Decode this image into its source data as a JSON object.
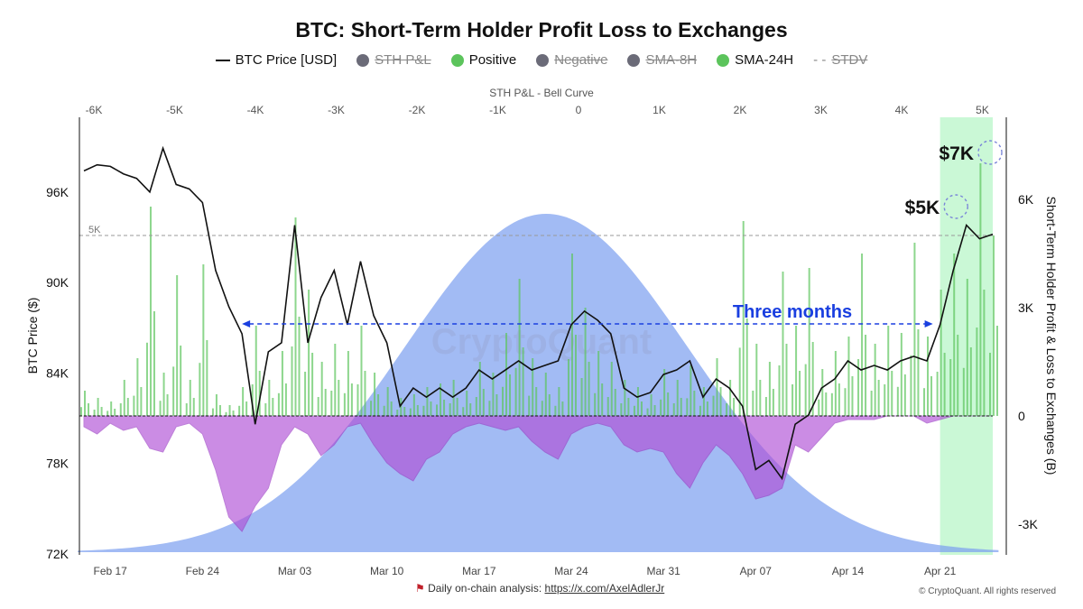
{
  "title": "BTC: Short-Term Holder Profit Loss to Exchanges",
  "legend": [
    {
      "label": "BTC Price [USD]",
      "marker": "line",
      "color": "#111111",
      "active": true
    },
    {
      "label": "STH P&L",
      "marker": "dot",
      "color": "#6b6b78",
      "active": false
    },
    {
      "label": "Positive",
      "marker": "dot",
      "color": "#5cc45c",
      "active": true
    },
    {
      "label": "Negative",
      "marker": "dot",
      "color": "#6b6b78",
      "active": false
    },
    {
      "label": "SMA-8H",
      "marker": "dot",
      "color": "#6b6b78",
      "active": false
    },
    {
      "label": "SMA-24H",
      "marker": "dot",
      "color": "#5cc45c",
      "active": true
    },
    {
      "label": "STDV",
      "marker": "dash",
      "color": "#888888",
      "active": false
    }
  ],
  "footer": {
    "text": "Daily on-chain analysis: ",
    "link": "https://x.com/AxelAdlerJr",
    "copyright": "© CryptoQuant. All rights reserved"
  },
  "watermark": "CryptoQuant",
  "chart_data": {
    "type": "line",
    "title": "BTC: Short-Term Holder Profit Loss to Exchanges",
    "ylabel": "BTC Price ($)",
    "y2label": "Short-Term Holder Profit & Loss to Exchanges (B)",
    "top_axis_label": "STH P&L - Bell Curve",
    "ylim": [
      72000,
      100000
    ],
    "y_ticks": [
      "72K",
      "78K",
      "84K",
      "90K",
      "96K"
    ],
    "y_tick_values": [
      72000,
      78000,
      84000,
      90000,
      96000
    ],
    "y2lim": [
      -3800,
      8200
    ],
    "y2_ticks": [
      "-3K",
      "0",
      "3K",
      "6K"
    ],
    "y2_tick_values": [
      -3000,
      0,
      3000,
      6000
    ],
    "top_ticks": [
      "-6K",
      "-5K",
      "-4K",
      "-3K",
      "-2K",
      "-1K",
      "0",
      "1K",
      "2K",
      "3K",
      "4K",
      "5K"
    ],
    "top_tick_values": [
      -6000,
      -5000,
      -4000,
      -3000,
      -2000,
      -1000,
      0,
      1000,
      2000,
      3000,
      4000,
      5000
    ],
    "x_ticks": [
      "Feb 17",
      "Feb 24",
      "Mar 03",
      "Mar 10",
      "Mar 17",
      "Mar 24",
      "Mar 31",
      "Apr 07",
      "Apr 14",
      "Apr 21"
    ],
    "x_tick_index": [
      2,
      9,
      16,
      23,
      30,
      37,
      44,
      51,
      58,
      65
    ],
    "x": [
      "Feb 15",
      "Feb 16",
      "Feb 17",
      "Feb 18",
      "Feb 19",
      "Feb 20",
      "Feb 21",
      "Feb 22",
      "Feb 23",
      "Feb 24",
      "Feb 25",
      "Feb 26",
      "Feb 27",
      "Feb 28",
      "Mar 01",
      "Mar 02",
      "Mar 03",
      "Mar 04",
      "Mar 05",
      "Mar 06",
      "Mar 07",
      "Mar 08",
      "Mar 09",
      "Mar 10",
      "Mar 11",
      "Mar 12",
      "Mar 13",
      "Mar 14",
      "Mar 15",
      "Mar 16",
      "Mar 17",
      "Mar 18",
      "Mar 19",
      "Mar 20",
      "Mar 21",
      "Mar 22",
      "Mar 23",
      "Mar 24",
      "Mar 25",
      "Mar 26",
      "Mar 27",
      "Mar 28",
      "Mar 29",
      "Mar 30",
      "Mar 31",
      "Apr 01",
      "Apr 02",
      "Apr 03",
      "Apr 04",
      "Apr 05",
      "Apr 06",
      "Apr 07",
      "Apr 08",
      "Apr 09",
      "Apr 10",
      "Apr 11",
      "Apr 12",
      "Apr 13",
      "Apr 14",
      "Apr 15",
      "Apr 16",
      "Apr 17",
      "Apr 18",
      "Apr 19",
      "Apr 20",
      "Apr 21",
      "Apr 22",
      "Apr 23",
      "Apr 24",
      "Apr 25"
    ],
    "series": [
      {
        "name": "BTC Price [USD]",
        "axis": "left",
        "color": "#111111",
        "values": [
          97400,
          97800,
          97700,
          97200,
          96900,
          96000,
          98900,
          96500,
          96200,
          95300,
          90800,
          88400,
          86600,
          80600,
          85400,
          86000,
          93800,
          86000,
          89000,
          90800,
          87200,
          91400,
          87800,
          86000,
          81800,
          83000,
          82400,
          83000,
          82400,
          83000,
          84200,
          83600,
          84200,
          84800,
          84200,
          84500,
          84800,
          87200,
          88100,
          87500,
          86600,
          83000,
          82400,
          82700,
          83900,
          84200,
          84800,
          82400,
          83600,
          83000,
          81800,
          77600,
          78200,
          77000,
          80600,
          81200,
          83000,
          83600,
          84800,
          84200,
          84500,
          84200,
          84800,
          85100,
          84800,
          87200,
          90800,
          93800,
          92900,
          93200
        ]
      },
      {
        "name": "Positive",
        "axis": "right",
        "color": "#5cc45c",
        "values": [
          700,
          500,
          400,
          1000,
          1600,
          5800,
          1200,
          3900,
          1000,
          4200,
          600,
          300,
          800,
          2500,
          1000,
          1800,
          5500,
          3500,
          1500,
          2000,
          1800,
          2500,
          1200,
          800,
          500,
          600,
          800,
          900,
          1000,
          700,
          1500,
          1200,
          2300,
          3800,
          1600,
          1200,
          800,
          4500,
          3000,
          1800,
          1500,
          1000,
          800,
          600,
          1300,
          1000,
          1400,
          800,
          1600,
          1000,
          5400,
          2000,
          1500,
          4000,
          2500,
          4100,
          1300,
          1800,
          2200,
          4500,
          2000,
          2500,
          2300,
          4800,
          2200,
          3500,
          4500,
          3800,
          7000,
          5000
        ]
      },
      {
        "name": "Negative",
        "axis": "right",
        "color": "#b04fd6",
        "values": [
          -300,
          -500,
          -200,
          -400,
          -300,
          -900,
          -1000,
          -300,
          -200,
          -500,
          -1500,
          -2800,
          -3200,
          -2500,
          -2000,
          -800,
          -300,
          -500,
          -1100,
          -800,
          -300,
          -200,
          -800,
          -1300,
          -1600,
          -1800,
          -1200,
          -1000,
          -500,
          -300,
          -200,
          -300,
          -400,
          -300,
          -700,
          -1000,
          -1200,
          -500,
          -300,
          -200,
          -300,
          -800,
          -1000,
          -900,
          -1000,
          -1600,
          -2000,
          -1300,
          -800,
          -1100,
          -1600,
          -2300,
          -2200,
          -2000,
          -800,
          -1000,
          -600,
          -200,
          -100,
          -100,
          -100,
          0,
          0,
          0,
          -200,
          -100,
          0,
          0,
          0,
          0
        ]
      }
    ],
    "bell_curve": {
      "mean": -400,
      "std": 1750,
      "color": "#7b9ef0"
    },
    "stdv_line": {
      "value": 5000,
      "label": "5K"
    },
    "annotations": {
      "range_label": "Three months",
      "range_start": "Feb 27",
      "range_end": "Apr 21",
      "range_color": "#1a3fe0",
      "highlight_start": "Apr 21",
      "highlight_end": "Apr 25",
      "highlight_color": "#b8f5c8",
      "marks": [
        {
          "label": "$5K",
          "value": 5800,
          "date": "Apr 22"
        },
        {
          "label": "$7K",
          "value": 7300,
          "date": "Apr 25"
        }
      ]
    },
    "grid": false
  }
}
